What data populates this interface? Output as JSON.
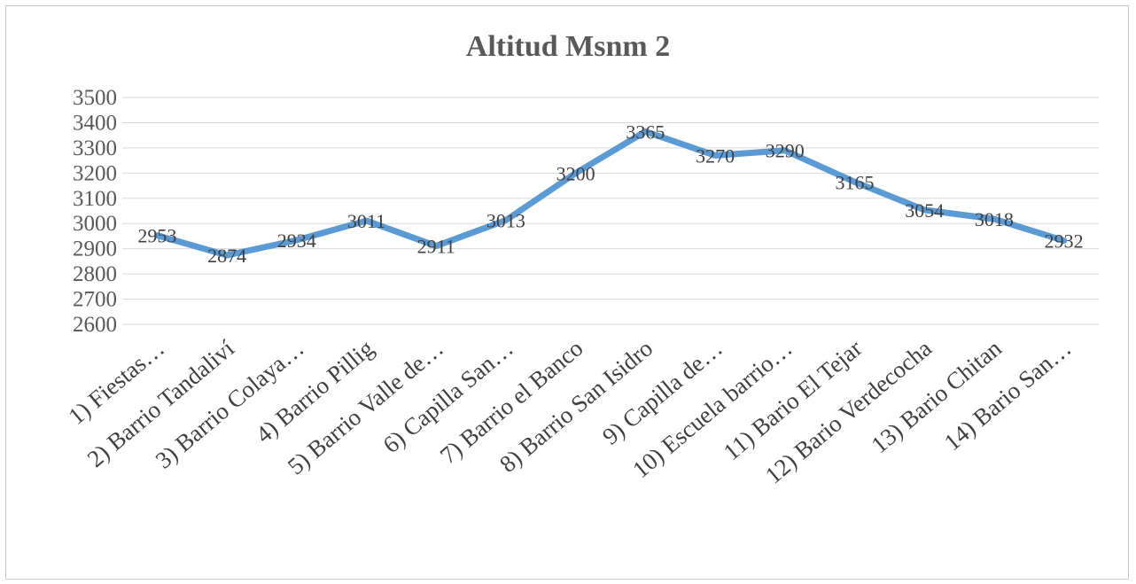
{
  "chart_data": {
    "type": "line",
    "title": "Altitud Msnm 2",
    "xlabel": "",
    "ylabel": "",
    "ylim": [
      2600,
      3500
    ],
    "yticks": [
      2600,
      2700,
      2800,
      2900,
      3000,
      3100,
      3200,
      3300,
      3400,
      3500
    ],
    "grid": true,
    "legend": "none",
    "categories": [
      "1) Fiestas…",
      "2) Barrio Tandaliví",
      "3) Barrio Colaya…",
      "4) Barrio Pillig",
      "5) Barrio Valle de…",
      "6) Capilla San…",
      "7) Barrio el Banco",
      "8) Barrio San Isidro",
      "9) Capilla de…",
      "10) Escuela barrio…",
      "11) Bario El Tejar",
      "12) Bario Verdecocha",
      "13) Bario Chitan",
      "14) Bario San…"
    ],
    "series": [
      {
        "values": [
          2953,
          2874,
          2934,
          3011,
          2911,
          3013,
          3200,
          3365,
          3270,
          3290,
          3165,
          3054,
          3018,
          2932
        ],
        "color": "#5b9bd5"
      }
    ],
    "gridline_color": "#d9d9d9"
  }
}
